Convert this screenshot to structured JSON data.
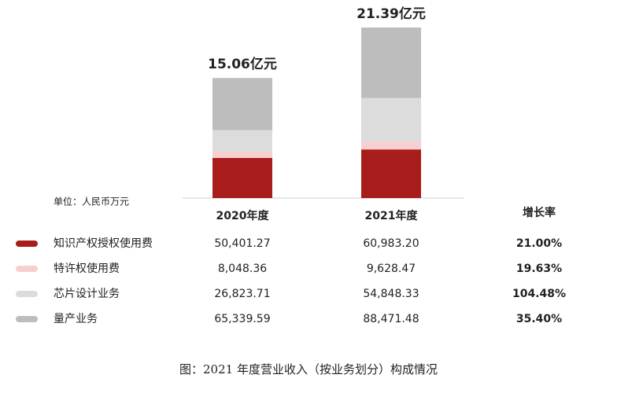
{
  "chart_data": {
    "type": "bar",
    "stacked": true,
    "categories": [
      "2020年度",
      "2021年度"
    ],
    "totals": [
      "15.06亿元",
      "21.39亿元"
    ],
    "total_colors": [
      "#111111",
      "#b22222"
    ],
    "unit": "单位：人民币万元",
    "growth_header": "增长率",
    "series": [
      {
        "name": "知识产权授权使用费",
        "color": "#a81c1c",
        "values": [
          50401.27,
          60983.2
        ],
        "value_labels": [
          "50,401.27",
          "60,983.20"
        ],
        "growth": "21.00%"
      },
      {
        "name": "特许权使用费",
        "color": "#f7cfcf",
        "values": [
          8048.36,
          9628.47
        ],
        "value_labels": [
          "8,048.36",
          "9,628.47"
        ],
        "growth": "19.63%"
      },
      {
        "name": "芯片设计业务",
        "color": "#dcdcdc",
        "values": [
          26823.71,
          54848.33
        ],
        "value_labels": [
          "26,823.71",
          "54,848.33"
        ],
        "growth": "104.48%"
      },
      {
        "name": "量产业务",
        "color": "#bdbdbd",
        "values": [
          65339.59,
          88471.48
        ],
        "value_labels": [
          "65,339.59",
          "88,471.48"
        ],
        "growth": "35.40%"
      }
    ],
    "caption": "图：2021 年度营业收入（按业务划分）构成情况"
  }
}
